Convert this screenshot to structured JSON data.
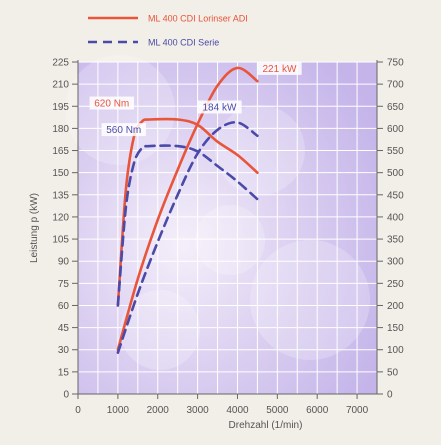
{
  "chart_data": {
    "type": "line",
    "title": "",
    "xlabel": "Drehzahl (1/min)",
    "ylabel_left": "Leistung p (kW)",
    "ylabel_right": "",
    "xlim": [
      0,
      7500
    ],
    "ylim_left": [
      0,
      225
    ],
    "ylim_right": [
      0,
      750
    ],
    "x_ticks": [
      "0",
      "1000",
      "2000",
      "3000",
      "4000",
      "5000",
      "6000",
      "7000"
    ],
    "y_ticks_left": [
      "0",
      "15",
      "30",
      "45",
      "60",
      "75",
      "90",
      "105",
      "120",
      "135",
      "150",
      "165",
      "180",
      "195",
      "210",
      "225"
    ],
    "y_ticks_right": [
      "0",
      "50",
      "100",
      "150",
      "200",
      "250",
      "300",
      "350",
      "400",
      "450",
      "500",
      "550",
      "600",
      "650",
      "700",
      "750"
    ],
    "grid": true,
    "legend": [
      {
        "label": "ML 400 CDI Lorinser ADI",
        "color": "#e8553a",
        "dash": "solid"
      },
      {
        "label": "ML 400 CDI Serie",
        "color": "#4a4aa8",
        "dash": "dashed"
      }
    ],
    "series": [
      {
        "name": "ML 400 CDI Lorinser ADI",
        "measure": "power",
        "axis": "left",
        "color": "#e8553a",
        "dash": "solid",
        "x": [
          1000,
          1500,
          2000,
          2500,
          3000,
          3500,
          4000,
          4500
        ],
        "y": [
          30,
          78,
          118,
          152,
          183,
          209,
          221,
          212
        ]
      },
      {
        "name": "ML 400 CDI Lorinser ADI",
        "measure": "torque",
        "axis": "right",
        "color": "#e8553a",
        "dash": "solid",
        "x": [
          1000,
          1200,
          1400,
          1600,
          1800,
          2500,
          3000,
          3500,
          4000,
          4500
        ],
        "y": [
          200,
          460,
          580,
          615,
          620,
          620,
          608,
          570,
          540,
          500
        ]
      },
      {
        "name": "ML 400 CDI Serie",
        "measure": "power",
        "axis": "left",
        "color": "#4a4aa8",
        "dash": "dashed",
        "x": [
          1000,
          1500,
          2000,
          2500,
          3000,
          3500,
          4000,
          4500
        ],
        "y": [
          28,
          68,
          103,
          135,
          163,
          179,
          184,
          175
        ]
      },
      {
        "name": "ML 400 CDI Serie",
        "measure": "torque",
        "axis": "right",
        "color": "#4a4aa8",
        "dash": "dashed",
        "x": [
          1000,
          1200,
          1400,
          1600,
          1800,
          2500,
          3000,
          3500,
          4000,
          4500
        ],
        "y": [
          200,
          420,
          520,
          555,
          560,
          560,
          548,
          515,
          480,
          440
        ]
      }
    ],
    "annotations": [
      {
        "text": "221 kW",
        "color": "#e8553a",
        "at_x": 4000,
        "at_y_left": 221
      },
      {
        "text": "620 Nm",
        "color": "#e8553a",
        "at_x": 1800,
        "at_y_right": 620
      },
      {
        "text": "184 kW",
        "color": "#4a4aa8",
        "at_x": 4000,
        "at_y_left": 184
      },
      {
        "text": "560 Nm",
        "color": "#4a4aa8",
        "at_x": 1800,
        "at_y_right": 560
      }
    ]
  }
}
